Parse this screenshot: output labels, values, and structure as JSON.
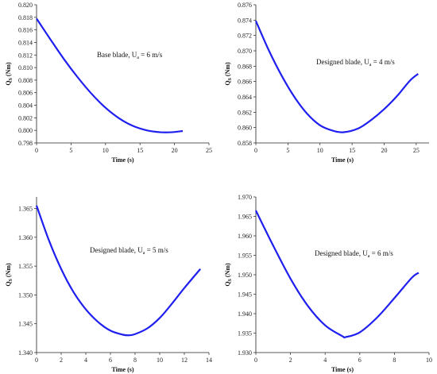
{
  "colors": {
    "curve": "#1f1ff0",
    "axis": "#222222"
  },
  "chart_data": [
    {
      "type": "line",
      "annotation_prefix": "Base blade, U",
      "annotation_sub": "a",
      "annotation_suffix": " = 6 m/s",
      "xlabel": "Time (s)",
      "ylabel": "Q",
      "ylabel_sub": "S",
      "ylabel_suffix": " (Nm)",
      "xlim": [
        0,
        25
      ],
      "ylim": [
        0.798,
        0.82
      ],
      "xticks": [
        0,
        5,
        10,
        15,
        20,
        25
      ],
      "yticks": [
        0.798,
        0.8,
        0.802,
        0.804,
        0.806,
        0.808,
        0.81,
        0.812,
        0.814,
        0.816,
        0.818,
        0.82
      ],
      "ytick_labels": [
        "0.798",
        "0.800",
        "0.802",
        "0.804",
        "0.806",
        "0.808",
        "0.810",
        "0.812",
        "0.814",
        "0.816",
        "0.818",
        "0.820"
      ],
      "xtick_labels": [
        "0",
        "5",
        "10",
        "15",
        "20",
        "25"
      ],
      "series": [
        {
          "x": [
            0,
            2,
            4,
            6,
            8,
            10,
            12,
            14,
            16,
            18,
            19.5,
            21.2
          ],
          "y": [
            0.8178,
            0.8145,
            0.8113,
            0.8084,
            0.8058,
            0.8036,
            0.8019,
            0.8007,
            0.8,
            0.7997,
            0.7997,
            0.7999
          ]
        }
      ]
    },
    {
      "type": "line",
      "annotation_prefix": "Designed blade, U",
      "annotation_sub": "a",
      "annotation_suffix": " = 4 m/s",
      "xlabel": "Time (s)",
      "ylabel": "Q",
      "ylabel_sub": "S",
      "ylabel_suffix": " (Nm)",
      "xlim": [
        0,
        27
      ],
      "ylim": [
        0.858,
        0.876
      ],
      "xticks": [
        0,
        5,
        10,
        15,
        20,
        25
      ],
      "yticks": [
        0.858,
        0.86,
        0.862,
        0.864,
        0.866,
        0.868,
        0.87,
        0.872,
        0.874,
        0.876
      ],
      "ytick_labels": [
        "0.858",
        "0.860",
        "0.862",
        "0.864",
        "0.866",
        "0.868",
        "0.870",
        "0.872",
        "0.874",
        "0.876"
      ],
      "xtick_labels": [
        "0",
        "5",
        "10",
        "15",
        "20",
        "25"
      ],
      "series": [
        {
          "x": [
            0,
            2,
            4,
            6,
            8,
            10,
            12,
            13.7,
            16,
            18,
            20,
            22,
            24,
            25.3
          ],
          "y": [
            0.8739,
            0.8701,
            0.8668,
            0.864,
            0.8618,
            0.8603,
            0.8596,
            0.8594,
            0.8599,
            0.861,
            0.8624,
            0.8641,
            0.8661,
            0.867
          ]
        }
      ]
    },
    {
      "type": "line",
      "annotation_prefix": "Designed blade, U",
      "annotation_sub": "a",
      "annotation_suffix": " = 5 m/s",
      "xlabel": "Time (s)",
      "ylabel": "Q",
      "ylabel_sub": "S",
      "ylabel_suffix": " (Nm)",
      "xlim": [
        0,
        14
      ],
      "ylim": [
        1.34,
        1.367
      ],
      "xticks": [
        0,
        2,
        4,
        6,
        8,
        10,
        12,
        14
      ],
      "yticks": [
        1.34,
        1.345,
        1.35,
        1.355,
        1.36,
        1.365
      ],
      "ytick_labels": [
        "1.340",
        "1.345",
        "1.350",
        "1.355",
        "1.360",
        "1.365"
      ],
      "xtick_labels": [
        "0",
        "2",
        "4",
        "6",
        "8",
        "10",
        "12",
        "14"
      ],
      "series": [
        {
          "x": [
            0,
            1,
            2,
            3,
            4,
            5,
            6,
            7,
            7.5,
            8,
            9,
            10,
            11,
            12,
            13.3
          ],
          "y": [
            1.3655,
            1.3595,
            1.3545,
            1.3505,
            1.3475,
            1.3453,
            1.3438,
            1.3431,
            1.343,
            1.3432,
            1.3442,
            1.346,
            1.3485,
            1.3512,
            1.3545
          ]
        }
      ]
    },
    {
      "type": "line",
      "annotation_prefix": "Designed blade, U",
      "annotation_sub": "a",
      "annotation_suffix": " = 6 m/s",
      "xlabel": "Time (s)",
      "ylabel": "Q",
      "ylabel_sub": "S",
      "ylabel_suffix": " (Nm)",
      "xlim": [
        0,
        10
      ],
      "ylim": [
        1.93,
        1.97
      ],
      "xticks": [
        0,
        2,
        4,
        6,
        8,
        10
      ],
      "yticks": [
        1.93,
        1.935,
        1.94,
        1.945,
        1.95,
        1.955,
        1.96,
        1.965,
        1.97
      ],
      "ytick_labels": [
        "1.930",
        "1.935",
        "1.940",
        "1.945",
        "1.950",
        "1.955",
        "1.960",
        "1.965",
        "1.970"
      ],
      "xtick_labels": [
        "0",
        "2",
        "4",
        "6",
        "8",
        "10"
      ],
      "series": [
        {
          "x": [
            0,
            1,
            2,
            3,
            4,
            5,
            5.2,
            6,
            7,
            8,
            9,
            9.4
          ],
          "y": [
            1.9665,
            1.9575,
            1.949,
            1.942,
            1.937,
            1.9342,
            1.934,
            1.9352,
            1.939,
            1.944,
            1.9492,
            1.9505
          ]
        }
      ]
    }
  ]
}
